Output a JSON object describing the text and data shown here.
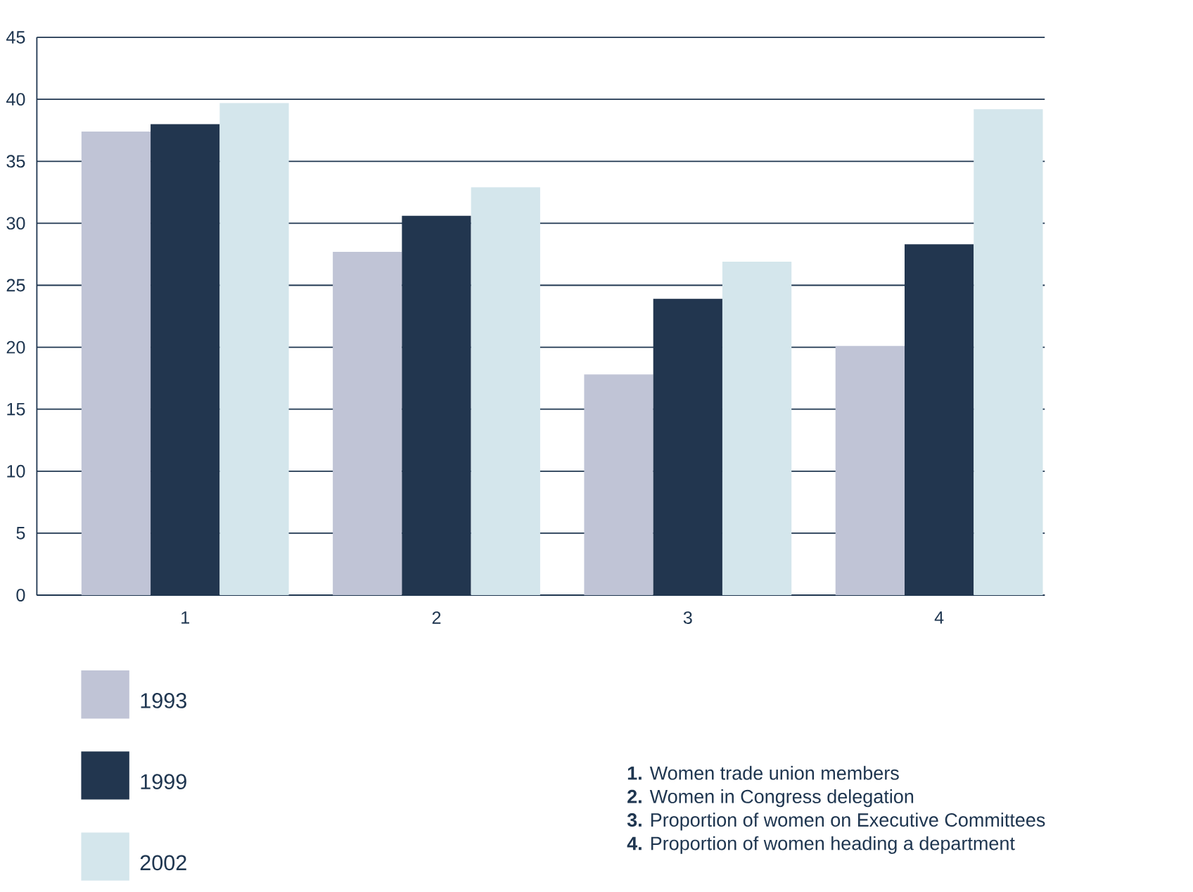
{
  "chart_data": {
    "type": "bar",
    "categories": [
      "1",
      "2",
      "3",
      "4"
    ],
    "series": [
      {
        "name": "1993",
        "color": "#c0c4d6",
        "values": [
          37.4,
          27.7,
          17.8,
          20.1
        ]
      },
      {
        "name": "1999",
        "color": "#22364f",
        "values": [
          38.0,
          30.6,
          23.9,
          28.3
        ]
      },
      {
        "name": "2002",
        "color": "#d4e6ec",
        "values": [
          39.7,
          32.9,
          26.9,
          39.2
        ]
      }
    ],
    "ylim": [
      0,
      45
    ],
    "yticks": [
      0,
      5,
      10,
      15,
      20,
      25,
      30,
      35,
      40,
      45
    ],
    "grid": "y",
    "legend": "bottom left",
    "annotations": [
      "**1.** Women trade union members",
      "**2.** Women in Congress delegation",
      "**3.** Proportion of women on Executive Committees",
      "**4.** Proportion of women heading a department"
    ]
  }
}
